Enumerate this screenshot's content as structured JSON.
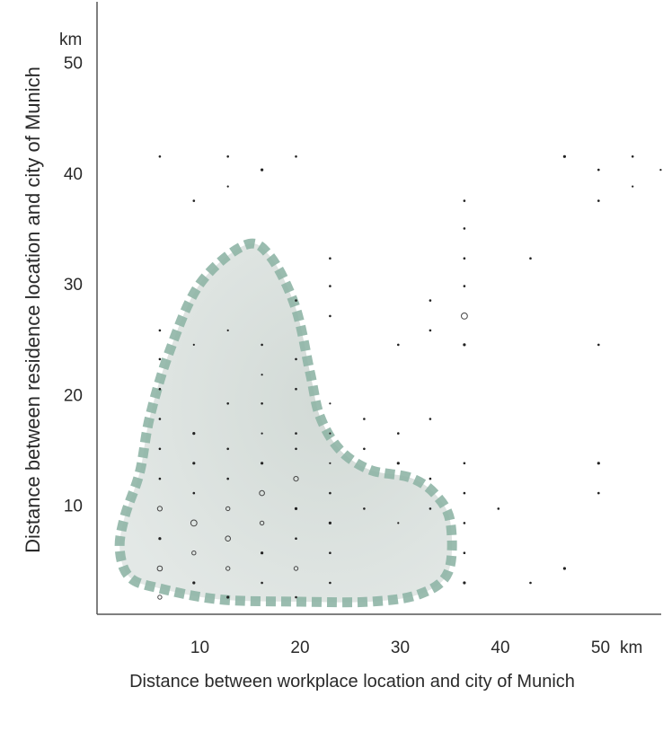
{
  "chart_data": {
    "type": "scatter",
    "title": "",
    "xlabel": "Distance between workplace location and city of Munich",
    "ylabel": "Distance between residence location and city of Munich",
    "x_unit": "km",
    "y_unit": "km",
    "xlim": [
      0,
      56
    ],
    "ylim": [
      0,
      55
    ],
    "xticks": [
      10,
      20,
      30,
      40,
      50
    ],
    "yticks": [
      10,
      20,
      30,
      40,
      50
    ],
    "grid": false,
    "highlight_region": {
      "label": "",
      "color": "#8fb5a6",
      "fill": "#dde3e0",
      "outline": [
        [
          14.5,
          33.5
        ],
        [
          17,
          32.5
        ],
        [
          19.5,
          28
        ],
        [
          21,
          22
        ],
        [
          22,
          18
        ],
        [
          24,
          15
        ],
        [
          27,
          13.2
        ],
        [
          31,
          12.5
        ],
        [
          33.5,
          11
        ],
        [
          35,
          8.5
        ],
        [
          34.8,
          4
        ],
        [
          32,
          2
        ],
        [
          27,
          1.3
        ],
        [
          20,
          1.3
        ],
        [
          12,
          1.5
        ],
        [
          6,
          2.5
        ],
        [
          3,
          3.5
        ],
        [
          2,
          6
        ],
        [
          2.5,
          9
        ],
        [
          4,
          13
        ],
        [
          5,
          18
        ],
        [
          7,
          24
        ],
        [
          10,
          30
        ]
      ]
    },
    "points": [
      {
        "x": 6,
        "y": 41.5,
        "s": 1.3
      },
      {
        "x": 12.8,
        "y": 41.5,
        "s": 1.3
      },
      {
        "x": 19.6,
        "y": 41.5,
        "s": 1.3
      },
      {
        "x": 46.4,
        "y": 41.5,
        "s": 1.6
      },
      {
        "x": 53.2,
        "y": 41.5,
        "s": 1.3
      },
      {
        "x": 16.2,
        "y": 40.3,
        "s": 1.6
      },
      {
        "x": 49.8,
        "y": 40.3,
        "s": 1.3
      },
      {
        "x": 12.8,
        "y": 38.8,
        "s": 1.1
      },
      {
        "x": 53.2,
        "y": 38.8,
        "s": 1.1
      },
      {
        "x": 9.4,
        "y": 37.5,
        "s": 1.3
      },
      {
        "x": 36.4,
        "y": 37.5,
        "s": 1.3
      },
      {
        "x": 49.8,
        "y": 37.5,
        "s": 1.3
      },
      {
        "x": 36.4,
        "y": 35,
        "s": 1.3
      },
      {
        "x": 23,
        "y": 32.3,
        "s": 1.3
      },
      {
        "x": 36.4,
        "y": 32.3,
        "s": 1.3
      },
      {
        "x": 43,
        "y": 32.3,
        "s": 1.3
      },
      {
        "x": 23,
        "y": 29.8,
        "s": 1.3
      },
      {
        "x": 36.4,
        "y": 29.8,
        "s": 1.3
      },
      {
        "x": 19.6,
        "y": 28.5,
        "s": 1.3
      },
      {
        "x": 33,
        "y": 28.5,
        "s": 1.3
      },
      {
        "x": 23,
        "y": 27.1,
        "s": 1.3
      },
      {
        "x": 36.4,
        "y": 27.1,
        "s": 3.4
      },
      {
        "x": 6,
        "y": 25.8,
        "s": 1.3
      },
      {
        "x": 12.8,
        "y": 25.8,
        "s": 1.1
      },
      {
        "x": 33,
        "y": 25.8,
        "s": 1.3
      },
      {
        "x": 9.4,
        "y": 24.5,
        "s": 1.1
      },
      {
        "x": 16.2,
        "y": 24.5,
        "s": 1.3
      },
      {
        "x": 29.8,
        "y": 24.5,
        "s": 1.3
      },
      {
        "x": 36.4,
        "y": 24.5,
        "s": 1.6
      },
      {
        "x": 49.8,
        "y": 24.5,
        "s": 1.3
      },
      {
        "x": 6,
        "y": 23.2,
        "s": 1.3
      },
      {
        "x": 19.6,
        "y": 23.2,
        "s": 1.3
      },
      {
        "x": 16.2,
        "y": 21.8,
        "s": 1.1
      },
      {
        "x": 6,
        "y": 20.5,
        "s": 1.3
      },
      {
        "x": 19.6,
        "y": 20.5,
        "s": 1.3
      },
      {
        "x": 12.8,
        "y": 19.2,
        "s": 1.3
      },
      {
        "x": 16.2,
        "y": 19.2,
        "s": 1.3
      },
      {
        "x": 23,
        "y": 19.2,
        "s": 1.1
      },
      {
        "x": 6,
        "y": 17.8,
        "s": 1.3
      },
      {
        "x": 26.4,
        "y": 17.8,
        "s": 1.3
      },
      {
        "x": 33,
        "y": 17.8,
        "s": 1.3
      },
      {
        "x": 19.6,
        "y": 16.5,
        "s": 1.3
      },
      {
        "x": 9.4,
        "y": 16.5,
        "s": 1.6
      },
      {
        "x": 16.2,
        "y": 16.5,
        "s": 1.1
      },
      {
        "x": 23,
        "y": 16.5,
        "s": 1.1
      },
      {
        "x": 29.8,
        "y": 16.5,
        "s": 1.3
      },
      {
        "x": 6,
        "y": 15.1,
        "s": 1.3
      },
      {
        "x": 12.8,
        "y": 15.1,
        "s": 1.3
      },
      {
        "x": 19.6,
        "y": 15.1,
        "s": 1.3
      },
      {
        "x": 26.4,
        "y": 15.1,
        "s": 1.3
      },
      {
        "x": 9.4,
        "y": 13.8,
        "s": 1.6
      },
      {
        "x": 16.2,
        "y": 13.8,
        "s": 1.6
      },
      {
        "x": 23,
        "y": 13.8,
        "s": 1.1
      },
      {
        "x": 29.8,
        "y": 13.8,
        "s": 1.6
      },
      {
        "x": 36.4,
        "y": 13.8,
        "s": 1.3
      },
      {
        "x": 49.8,
        "y": 13.8,
        "s": 1.6
      },
      {
        "x": 6,
        "y": 12.4,
        "s": 1.3
      },
      {
        "x": 12.8,
        "y": 12.4,
        "s": 1.3
      },
      {
        "x": 19.6,
        "y": 12.4,
        "s": 2.6
      },
      {
        "x": 33,
        "y": 12.4,
        "s": 1.3
      },
      {
        "x": 9.4,
        "y": 11.1,
        "s": 1.3
      },
      {
        "x": 16.2,
        "y": 11.1,
        "s": 2.8
      },
      {
        "x": 23,
        "y": 11.1,
        "s": 1.3
      },
      {
        "x": 36.4,
        "y": 11.1,
        "s": 1.3
      },
      {
        "x": 49.8,
        "y": 11.1,
        "s": 1.3
      },
      {
        "x": 6,
        "y": 9.7,
        "s": 2.6
      },
      {
        "x": 12.8,
        "y": 9.7,
        "s": 2.2
      },
      {
        "x": 19.6,
        "y": 9.7,
        "s": 1.6
      },
      {
        "x": 26.4,
        "y": 9.7,
        "s": 1.3
      },
      {
        "x": 33,
        "y": 9.7,
        "s": 1.3
      },
      {
        "x": 39.8,
        "y": 9.7,
        "s": 1.3
      },
      {
        "x": 9.4,
        "y": 8.4,
        "s": 3.4
      },
      {
        "x": 16.2,
        "y": 8.4,
        "s": 2.2
      },
      {
        "x": 23,
        "y": 8.4,
        "s": 1.6
      },
      {
        "x": 29.8,
        "y": 8.4,
        "s": 1.1
      },
      {
        "x": 36.4,
        "y": 8.4,
        "s": 1.3
      },
      {
        "x": 6,
        "y": 7,
        "s": 1.6
      },
      {
        "x": 12.8,
        "y": 7,
        "s": 2.8
      },
      {
        "x": 19.6,
        "y": 7,
        "s": 1.3
      },
      {
        "x": 9.4,
        "y": 5.7,
        "s": 2.2
      },
      {
        "x": 16.2,
        "y": 5.7,
        "s": 1.6
      },
      {
        "x": 23,
        "y": 5.7,
        "s": 1.3
      },
      {
        "x": 36.4,
        "y": 5.7,
        "s": 1.3
      },
      {
        "x": 6,
        "y": 4.3,
        "s": 2.8
      },
      {
        "x": 12.8,
        "y": 4.3,
        "s": 2.2
      },
      {
        "x": 19.6,
        "y": 4.3,
        "s": 2.2
      },
      {
        "x": 46.4,
        "y": 4.3,
        "s": 1.6
      },
      {
        "x": 9.4,
        "y": 3,
        "s": 1.6
      },
      {
        "x": 16.2,
        "y": 3,
        "s": 1.3
      },
      {
        "x": 23,
        "y": 3,
        "s": 1.3
      },
      {
        "x": 36.4,
        "y": 3,
        "s": 1.6
      },
      {
        "x": 43,
        "y": 3,
        "s": 1.3
      },
      {
        "x": 6,
        "y": 1.7,
        "s": 2.2
      },
      {
        "x": 12.8,
        "y": 1.7,
        "s": 1.6
      },
      {
        "x": 19.6,
        "y": 1.7,
        "s": 1.3
      },
      {
        "x": 56,
        "y": 40.3,
        "s": 1.1
      }
    ]
  }
}
